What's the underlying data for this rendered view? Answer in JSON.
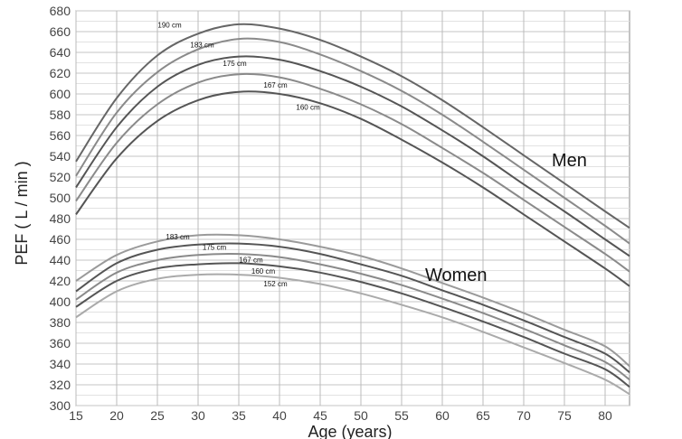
{
  "chart_data": {
    "type": "line",
    "xlabel": "Age (years)",
    "ylabel": "PEF ( L / min )",
    "xlim": [
      15,
      83
    ],
    "ylim": [
      300,
      680
    ],
    "x_ticks": [
      15,
      20,
      25,
      30,
      35,
      40,
      45,
      50,
      55,
      60,
      65,
      70,
      75,
      80
    ],
    "y_ticks": [
      300,
      320,
      340,
      360,
      380,
      400,
      420,
      440,
      460,
      480,
      500,
      520,
      540,
      560,
      580,
      600,
      620,
      640,
      660,
      680
    ],
    "grid": true,
    "group_labels": {
      "men": "Men",
      "women": "Women"
    },
    "x": [
      15,
      20,
      25,
      30,
      35,
      40,
      45,
      50,
      55,
      60,
      65,
      70,
      75,
      80,
      83
    ],
    "series": [
      {
        "name": "190 cm",
        "group": "men",
        "color": "#666666",
        "label_pos": [
          26.5,
          664
        ],
        "values": [
          535,
          596,
          637,
          658,
          667,
          663,
          652,
          636,
          617,
          594,
          568,
          541,
          514,
          487,
          471
        ]
      },
      {
        "name": "183 cm",
        "group": "men",
        "color": "#8a8a8a",
        "label_pos": [
          30.5,
          645
        ],
        "values": [
          521,
          582,
          621,
          643,
          653,
          650,
          638,
          622,
          603,
          580,
          554,
          527,
          500,
          473,
          456
        ]
      },
      {
        "name": "175 cm",
        "group": "men",
        "color": "#555555",
        "label_pos": [
          34.5,
          627
        ],
        "values": [
          510,
          568,
          607,
          628,
          636,
          633,
          622,
          607,
          588,
          565,
          540,
          513,
          487,
          460,
          444
        ]
      },
      {
        "name": "167 cm",
        "group": "men",
        "color": "#8a8a8a",
        "label_pos": [
          39.5,
          606
        ],
        "values": [
          497,
          553,
          590,
          611,
          619,
          616,
          605,
          590,
          571,
          548,
          524,
          498,
          472,
          446,
          429
        ]
      },
      {
        "name": "160 cm",
        "group": "men",
        "color": "#555555",
        "label_pos": [
          43.5,
          585
        ],
        "values": [
          484,
          538,
          574,
          594,
          602,
          600,
          591,
          576,
          556,
          534,
          510,
          484,
          458,
          432,
          415
        ]
      },
      {
        "name": "183 cm",
        "group": "women",
        "color": "#9a9a9a",
        "label_pos": [
          27.5,
          460
        ],
        "values": [
          420,
          445,
          458,
          464,
          464,
          460,
          453,
          444,
          432,
          418,
          404,
          389,
          373,
          357,
          338
        ]
      },
      {
        "name": "175 cm",
        "group": "women",
        "color": "#555555",
        "label_pos": [
          32,
          450
        ],
        "values": [
          410,
          437,
          450,
          455,
          456,
          453,
          446,
          436,
          425,
          411,
          397,
          382,
          366,
          350,
          332
        ]
      },
      {
        "name": "167 cm",
        "group": "women",
        "color": "#8a8a8a",
        "label_pos": [
          36.5,
          438
        ],
        "values": [
          402,
          428,
          440,
          445,
          446,
          443,
          436,
          427,
          416,
          403,
          389,
          374,
          358,
          342,
          325
        ]
      },
      {
        "name": "160 cm",
        "group": "women",
        "color": "#555555",
        "label_pos": [
          38,
          427
        ],
        "values": [
          395,
          420,
          432,
          436,
          437,
          434,
          428,
          419,
          408,
          395,
          381,
          366,
          350,
          335,
          318
        ]
      },
      {
        "name": "152 cm",
        "group": "women",
        "color": "#aaaaaa",
        "label_pos": [
          39.5,
          415
        ],
        "values": [
          385,
          410,
          422,
          426,
          426,
          423,
          417,
          408,
          397,
          385,
          371,
          356,
          341,
          325,
          311
        ]
      }
    ]
  }
}
